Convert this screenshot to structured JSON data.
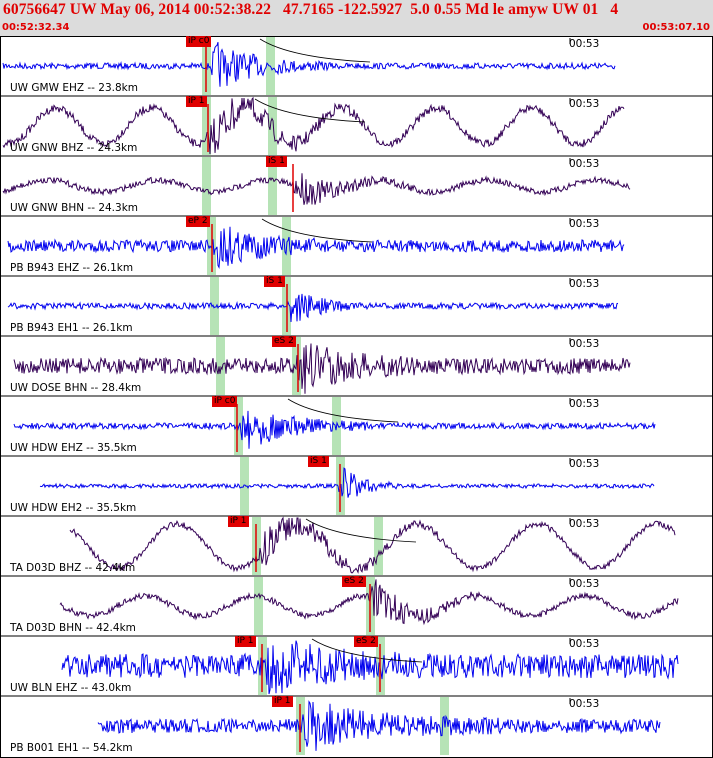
{
  "header": {
    "title": "60756647 UW May 06, 2014 00:52:38.22   47.7165 -122.5927  5.0 0.55 Md le amyw UW 01   4",
    "start_time": "00:52:32.34",
    "end_time": "00:53:07.10",
    "background": "#dcdcdc",
    "text_color": "#e00000"
  },
  "colors": {
    "trace_blue": "#0000ee",
    "trace_purple": "#330055",
    "pick_red": "#e00000",
    "window_green": "#b6e3b6"
  },
  "traces": [
    {
      "label": "UW GMW EHZ -- 23.8km",
      "tick": "00:53",
      "pick": "iP c0",
      "color": "blue"
    },
    {
      "label": "UW GNW BHZ -- 24.3km",
      "tick": "00:53",
      "pick": "iP 1",
      "color": "purple"
    },
    {
      "label": "UW GNW BHN -- 24.3km",
      "tick": "00:53",
      "pick": "iS 1",
      "color": "purple"
    },
    {
      "label": "PB B943 EHZ -- 26.1km",
      "tick": "00:53",
      "pick": "eP 2",
      "color": "blue"
    },
    {
      "label": "PB B943 EH1 -- 26.1km",
      "tick": "00:53",
      "pick": "iS 1",
      "color": "blue"
    },
    {
      "label": "UW DOSE BHN -- 28.4km",
      "tick": "00:53",
      "pick": "eS 2",
      "color": "purple"
    },
    {
      "label": "UW HDW EHZ -- 35.5km",
      "tick": "00:53",
      "pick": "iP c0",
      "color": "blue"
    },
    {
      "label": "UW HDW EH2 -- 35.5km",
      "tick": "00:53",
      "pick": "iS 1",
      "color": "blue"
    },
    {
      "label": "TA D03D BHZ -- 42.4km",
      "tick": "00:53",
      "pick": "iP 1",
      "color": "purple"
    },
    {
      "label": "TA D03D BHN -- 42.4km",
      "tick": "00:53",
      "pick": "eS 2",
      "color": "purple"
    },
    {
      "label": "UW BLN EHZ -- 43.0km",
      "tick": "00:53",
      "pick": "iP 1",
      "color": "blue",
      "pick2": "eS 2"
    },
    {
      "label": "PB B001 EH1 -- 54.2km",
      "tick": "00:53",
      "pick": "iP 1",
      "color": "blue"
    }
  ]
}
